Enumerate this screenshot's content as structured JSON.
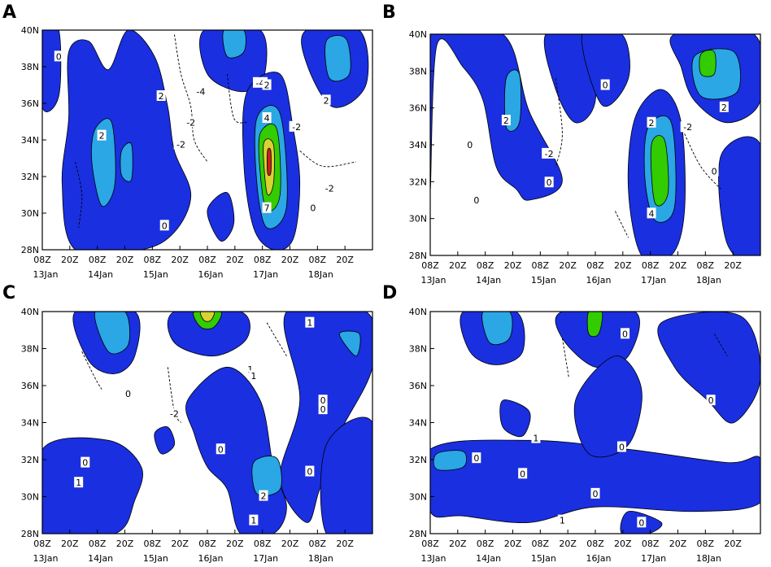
{
  "figure": {
    "colors": {
      "blue": "#1a2fe0",
      "light_blue": "#2aa7e4",
      "green": "#33cc00",
      "yellow": "#d8d232",
      "red": "#c81e1e",
      "background": "#ffffff",
      "contour_line": "#000000"
    }
  },
  "chart_data": [
    {
      "panel": "A",
      "type": "heatmap",
      "y_ticks": [
        "40N",
        "38N",
        "36N",
        "34N",
        "32N",
        "30N",
        "28N"
      ],
      "x_ticks": [
        "08Z",
        "20Z",
        "08Z",
        "20Z",
        "08Z",
        "20Z",
        "08Z",
        "20Z",
        "08Z",
        "20Z",
        "08Z",
        "20Z"
      ],
      "date_labels": [
        "13Jan",
        "14Jan",
        "15Jan",
        "16Jan",
        "17Jan",
        "18Jan"
      ],
      "ylim": [
        28,
        40
      ],
      "contour_labels": [
        "0",
        "2",
        "-2",
        "-2",
        "-4",
        "-4",
        "2",
        "4",
        "-2",
        "7",
        "-2",
        "0",
        "2",
        "0",
        "2"
      ]
    },
    {
      "panel": "B",
      "type": "heatmap",
      "y_ticks": [
        "40N",
        "38N",
        "36N",
        "34N",
        "32N",
        "30N",
        "28N"
      ],
      "x_ticks": [
        "08Z",
        "20Z",
        "08Z",
        "20Z",
        "08Z",
        "20Z",
        "08Z",
        "20Z",
        "08Z",
        "20Z",
        "08Z",
        "20Z"
      ],
      "date_labels": [
        "13Jan",
        "14Jan",
        "15Jan",
        "16Jan",
        "17Jan",
        "18Jan"
      ],
      "ylim": [
        28,
        40
      ],
      "contour_labels": [
        "2",
        "0",
        "0",
        "-2",
        "0",
        "0",
        "2",
        "4",
        "-2",
        "0",
        "2"
      ]
    },
    {
      "panel": "C",
      "type": "heatmap",
      "y_ticks": [
        "40N",
        "38N",
        "36N",
        "34N",
        "32N",
        "30N",
        "28N"
      ],
      "x_ticks": [
        "08Z",
        "20Z",
        "08Z",
        "20Z",
        "08Z",
        "20Z",
        "08Z",
        "20Z",
        "08Z",
        "20Z",
        "08Z",
        "20Z"
      ],
      "date_labels": [
        "13Jan",
        "14Jan",
        "15Jan",
        "16Jan",
        "17Jan",
        "18Jan"
      ],
      "ylim": [
        28,
        40
      ],
      "contour_labels": [
        "0",
        "-2",
        "0",
        "0",
        "1",
        "1",
        "2",
        "1",
        "1",
        "0",
        "0",
        "0",
        "1"
      ]
    },
    {
      "panel": "D",
      "type": "heatmap",
      "y_ticks": [
        "40N",
        "38N",
        "36N",
        "34N",
        "32N",
        "30N",
        "28N"
      ],
      "x_ticks": [
        "08Z",
        "20Z",
        "08Z",
        "20Z",
        "08Z",
        "20Z",
        "08Z",
        "20Z",
        "08Z",
        "20Z",
        "08Z",
        "20Z"
      ],
      "date_labels": [
        "13Jan",
        "14Jan",
        "15Jan",
        "16Jan",
        "17Jan",
        "18Jan"
      ],
      "ylim": [
        28,
        40
      ],
      "contour_labels": [
        "0",
        "0",
        "1",
        "0",
        "0",
        "0",
        "0",
        "1",
        "0"
      ]
    }
  ]
}
